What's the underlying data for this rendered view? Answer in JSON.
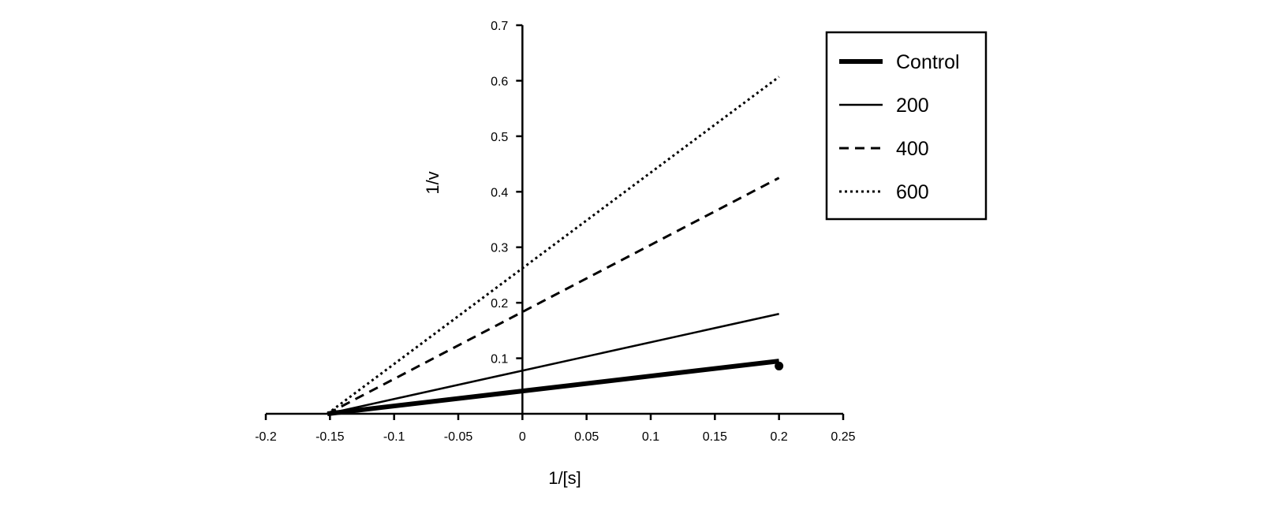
{
  "chart_data": {
    "type": "line",
    "title": "",
    "xlabel": "1/[s]",
    "ylabel": "1/v",
    "xlim": [
      -0.2,
      0.25
    ],
    "ylim": [
      0,
      0.7
    ],
    "x_ticks": [
      -0.2,
      -0.15,
      -0.1,
      -0.05,
      0,
      0.05,
      0.1,
      0.15,
      0.2,
      0.25
    ],
    "y_ticks": [
      0.1,
      0.2,
      0.3,
      0.4,
      0.5,
      0.6,
      0.7
    ],
    "x_tick_labels": [
      "-0.2",
      "-0.15",
      "-0.1",
      "-0.05",
      "0",
      "0.05",
      "0.1",
      "0.15",
      "0.2",
      "0.25"
    ],
    "y_tick_labels": [
      "0.1",
      "0.2",
      "0.3",
      "0.4",
      "0.5",
      "0.6",
      "0.7"
    ],
    "grid": false,
    "legend_position": "top-right",
    "series": [
      {
        "name": "Control",
        "style": "thick-solid",
        "x": [
          -0.152,
          0.2
        ],
        "y": [
          0,
          0.095
        ]
      },
      {
        "name": "200",
        "style": "solid",
        "x": [
          -0.152,
          0.2
        ],
        "y": [
          0,
          0.18
        ]
      },
      {
        "name": "400",
        "style": "dashed",
        "x": [
          -0.152,
          0.2
        ],
        "y": [
          0,
          0.425
        ]
      },
      {
        "name": "600",
        "style": "dotted",
        "x": [
          -0.152,
          0.2
        ],
        "y": [
          0,
          0.607
        ]
      }
    ],
    "markers": [
      {
        "x": 0.2,
        "y": 0.086
      }
    ],
    "colors": {
      "line": "#000000",
      "background": "#ffffff"
    }
  }
}
